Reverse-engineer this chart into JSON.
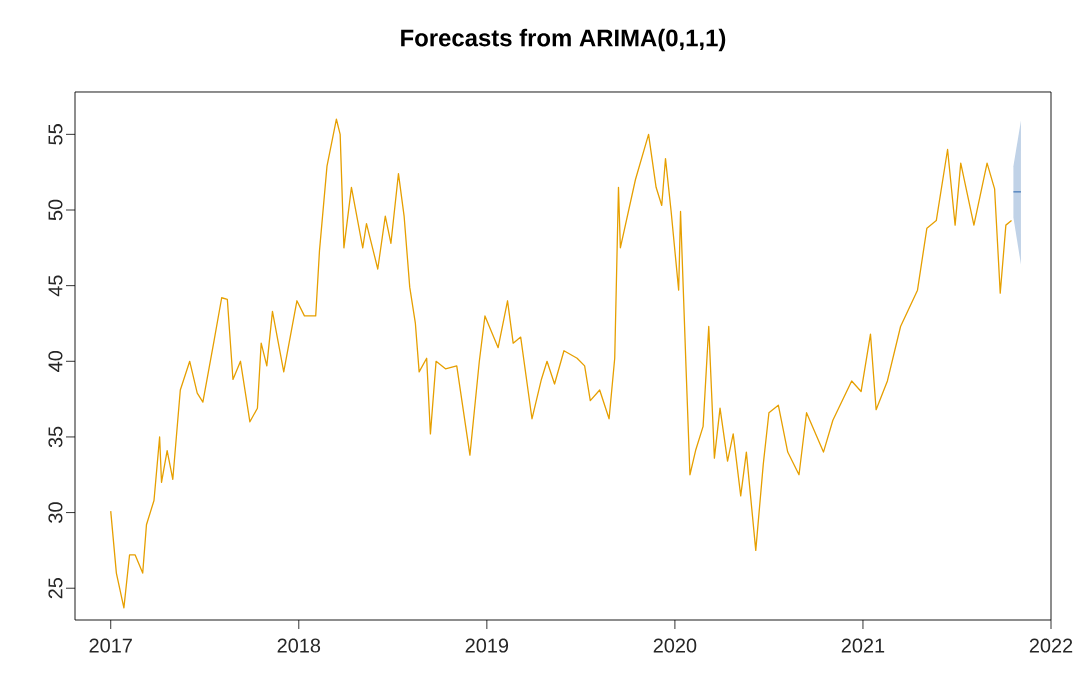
{
  "chart_data": {
    "type": "line",
    "title": "Forecasts from ARIMA(0,1,1)",
    "xlim": [
      2016.81,
      2022
    ],
    "ylim": [
      22.9,
      57.8
    ],
    "xticks": [
      2017,
      2018,
      2019,
      2020,
      2021,
      2022
    ],
    "yticks": [
      25,
      30,
      35,
      40,
      45,
      50,
      55
    ],
    "grid": false,
    "line_style": "solid",
    "marker": "none",
    "series": [
      {
        "color": "#e69f00",
        "x": [
          2017.0,
          2017.03,
          2017.07,
          2017.1,
          2017.13,
          2017.17,
          2017.19,
          2017.23,
          2017.26,
          2017.27,
          2017.3,
          2017.33,
          2017.37,
          2017.42,
          2017.46,
          2017.49,
          2017.55,
          2017.59,
          2017.62,
          2017.65,
          2017.69,
          2017.74,
          2017.78,
          2017.8,
          2017.83,
          2017.86,
          2017.92,
          2017.99,
          2018.03,
          2018.09,
          2018.11,
          2018.15,
          2018.2,
          2018.22,
          2018.24,
          2018.28,
          2018.34,
          2018.36,
          2018.42,
          2018.46,
          2018.49,
          2018.53,
          2018.56,
          2018.59,
          2018.62,
          2018.64,
          2018.68,
          2018.7,
          2018.73,
          2018.78,
          2018.84,
          2018.91,
          2018.96,
          2018.99,
          2019.06,
          2019.11,
          2019.14,
          2019.18,
          2019.24,
          2019.29,
          2019.32,
          2019.36,
          2019.41,
          2019.48,
          2019.52,
          2019.55,
          2019.6,
          2019.65,
          2019.68,
          2019.7,
          2019.71,
          2019.79,
          2019.86,
          2019.9,
          2019.93,
          2019.95,
          2019.98,
          2020.02,
          2020.03,
          2020.06,
          2020.08,
          2020.11,
          2020.15,
          2020.18,
          2020.21,
          2020.24,
          2020.28,
          2020.31,
          2020.35,
          2020.38,
          2020.43,
          2020.47,
          2020.5,
          2020.55,
          2020.6,
          2020.66,
          2020.7,
          2020.79,
          2020.84,
          2020.94,
          2020.99,
          2021.04,
          2021.07,
          2021.13,
          2021.2,
          2021.29,
          2021.34,
          2021.39,
          2021.45,
          2021.49,
          2021.52,
          2021.59,
          2021.66,
          2021.7,
          2021.73,
          2021.76,
          2021.79
        ],
        "values": [
          30.1,
          26.0,
          23.7,
          27.2,
          27.2,
          26.0,
          29.2,
          30.8,
          35.0,
          32.0,
          34.1,
          32.2,
          38.1,
          40.0,
          37.9,
          37.3,
          41.4,
          44.2,
          44.1,
          38.8,
          40.0,
          36.0,
          36.9,
          41.2,
          39.7,
          43.3,
          39.3,
          44.0,
          43.0,
          43.0,
          47.3,
          52.9,
          56.0,
          55.0,
          47.5,
          51.5,
          47.5,
          49.1,
          46.1,
          49.6,
          47.8,
          52.4,
          49.6,
          44.9,
          42.5,
          39.3,
          40.2,
          35.2,
          40.0,
          39.5,
          39.7,
          33.8,
          40.0,
          43.0,
          40.9,
          44.0,
          41.2,
          41.6,
          36.2,
          38.8,
          40.0,
          38.5,
          40.7,
          40.2,
          39.7,
          37.4,
          38.1,
          36.2,
          40.2,
          51.5,
          47.5,
          52.0,
          55.0,
          51.5,
          50.3,
          53.4,
          49.9,
          44.7,
          49.9,
          39.3,
          32.5,
          34.1,
          35.7,
          42.3,
          33.6,
          36.9,
          33.4,
          35.2,
          31.1,
          34.0,
          27.5,
          33.2,
          36.6,
          37.1,
          34.0,
          32.5,
          36.6,
          34.0,
          36.1,
          38.7,
          38.0,
          41.8,
          36.8,
          38.7,
          42.3,
          44.7,
          48.8,
          49.3,
          54.0,
          49.0,
          53.1,
          49.0,
          53.1,
          51.4,
          44.5,
          49.0,
          49.3
        ]
      },
      {
        "color": "#4a7ebb",
        "x": [
          2021.8,
          2021.84
        ],
        "values": [
          51.2,
          51.2
        ],
        "lower": [
          49.5,
          46.4
        ],
        "upper": [
          52.9,
          55.9
        ]
      }
    ]
  }
}
